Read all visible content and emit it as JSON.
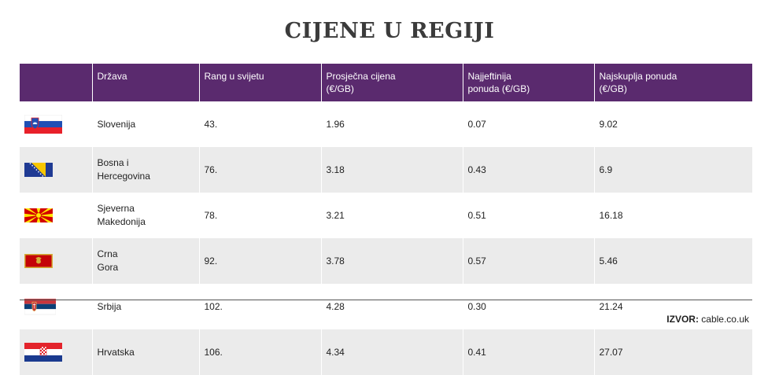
{
  "title": "CIJENE U REGIJI",
  "table": {
    "headers": [
      "",
      "Država",
      "Rang u svijetu",
      "Prosječna cijena\n (€/GB)",
      "Najjeftinija\n ponuda (€/GB)",
      "Najskuplja ponuda\n (€/GB)"
    ],
    "rows": [
      {
        "flag": "slovenia-flag",
        "country": "Slovenija",
        "rank": "43.",
        "avg": "1.96",
        "min": "0.07",
        "max": "9.02"
      },
      {
        "flag": "bosnia-herzegovina-flag",
        "country": "Bosna i\n Hercegovina",
        "rank": "76.",
        "avg": "3.18",
        "min": "0.43",
        "max": "6.9"
      },
      {
        "flag": "north-macedonia-flag",
        "country": "Sjeverna\n Makedonija",
        "rank": "78.",
        "avg": "3.21",
        "min": "0.51",
        "max": "16.18"
      },
      {
        "flag": "montenegro-flag",
        "country": "Crna\n Gora",
        "rank": "92.",
        "avg": "3.78",
        "min": "0.57",
        "max": "5.46"
      },
      {
        "flag": "serbia-flag",
        "country": "Srbija",
        "rank": "102.",
        "avg": "4.28",
        "min": "0.30",
        "max": "21.24"
      },
      {
        "flag": "croatia-flag",
        "country": "Hrvatska",
        "rank": "106.",
        "avg": "4.34",
        "min": "0.41",
        "max": "27.07"
      }
    ]
  },
  "source": {
    "label": "IZVOR:",
    "value": " cable.co.uk"
  },
  "colors": {
    "header_bg": "#5a2a6e",
    "row_alt": "#ebebeb",
    "title": "#3b3b3b"
  }
}
